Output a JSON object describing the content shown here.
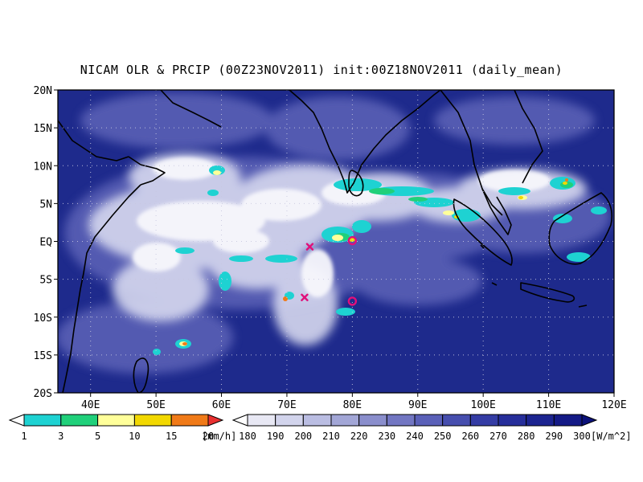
{
  "title": "NICAM OLR & PRCIP (00Z23NOV2011) init:00Z18NOV2011 (daily_mean)",
  "map": {
    "lon_range": [
      35,
      120
    ],
    "lat_range": [
      -20,
      20
    ],
    "lon_ticks": [
      "40E",
      "50E",
      "60E",
      "70E",
      "80E",
      "90E",
      "100E",
      "110E",
      "120E"
    ],
    "lat_ticks": [
      "20N",
      "15N",
      "10N",
      "5N",
      "EQ",
      "5S",
      "10S",
      "15S",
      "20S"
    ],
    "grid": "dotted",
    "ocean_color": "#1e2a8c"
  },
  "markers": [
    {
      "type": "x",
      "lon": 73.5,
      "lat": -0.7,
      "color": "#e0107a"
    },
    {
      "type": "x",
      "lon": 72.7,
      "lat": -7.4,
      "color": "#e0107a"
    },
    {
      "type": "circle",
      "lon": 80.0,
      "lat": 0.1,
      "color": "#e0107a"
    },
    {
      "type": "circle",
      "lon": 80.0,
      "lat": -7.9,
      "color": "#e0107a"
    }
  ],
  "precip_legend": {
    "unit": "[mm/h]",
    "labels": [
      "1",
      "3",
      "5",
      "10",
      "15",
      "20"
    ],
    "colors": [
      "#ffffff",
      "#1ed2d2",
      "#20d07a",
      "#ffff9a",
      "#f2d800",
      "#f07a18",
      "#e83030"
    ]
  },
  "olr_legend": {
    "unit": "[W/m^2]",
    "labels": [
      "180",
      "190",
      "200",
      "210",
      "220",
      "230",
      "240",
      "250",
      "260",
      "270",
      "280",
      "290",
      "300"
    ],
    "colors": [
      "#ffffff",
      "#e8e8f4",
      "#d2d4ec",
      "#babde2",
      "#a2a6d6",
      "#8a8ecc",
      "#7276c2",
      "#5a60b8",
      "#464eae",
      "#343ca4",
      "#262e9a",
      "#1c2490",
      "#141a86",
      "#0c127a"
    ]
  }
}
